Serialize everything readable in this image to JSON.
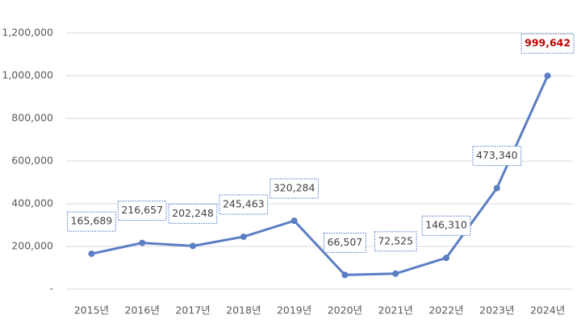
{
  "chart_data": {
    "type": "line",
    "categories": [
      "2015년",
      "2016년",
      "2017년",
      "2018년",
      "2019년",
      "2020년",
      "2021년",
      "2022년",
      "2023년",
      "2024년"
    ],
    "series": [
      {
        "name": "",
        "color": "#5b7ec4",
        "values": [
          165689,
          216657,
          202248,
          245463,
          320284,
          66507,
          72525,
          146310,
          473340,
          999642
        ],
        "value_labels": [
          "165,689",
          "216,657",
          "202,248",
          "245,463",
          "320,284",
          "66,507",
          "72,525",
          "146,310",
          "473,340",
          "999,642"
        ]
      }
    ],
    "ylim": [
      0,
      1200000
    ],
    "yticks": [
      {
        "value": 0,
        "label": "-"
      },
      {
        "value": 200000,
        "label": "200,000"
      },
      {
        "value": 400000,
        "label": "400,000"
      },
      {
        "value": 600000,
        "label": "600,000"
      },
      {
        "value": 800000,
        "label": "800,000"
      },
      {
        "value": 1000000,
        "label": "1,000,000"
      },
      {
        "value": 1200000,
        "label": "1,200,000"
      }
    ],
    "grid": true
  }
}
